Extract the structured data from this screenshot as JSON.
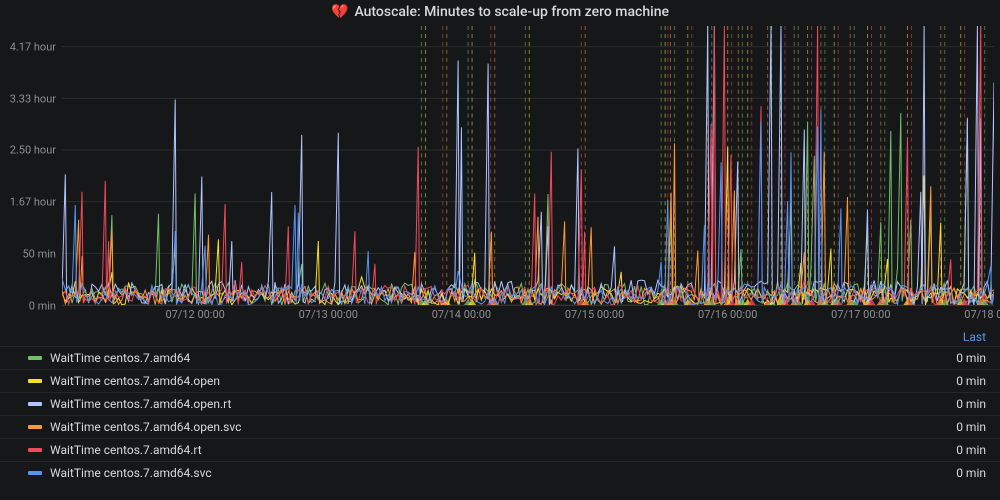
{
  "title": {
    "icon": "💔",
    "text": "Autoscale: Minutes to scale-up from zero machine"
  },
  "chart": {
    "type": "line",
    "background_color": "#161719",
    "grid_color": "#2c2c2c",
    "axis_text_color": "#8e8e8e",
    "y": {
      "min": 0,
      "max": 270,
      "ticks": [
        {
          "v": 0,
          "label": "0 min"
        },
        {
          "v": 50,
          "label": "50 min"
        },
        {
          "v": 100,
          "label": "1.67 hour"
        },
        {
          "v": 150,
          "label": "2.50 hour"
        },
        {
          "v": 200,
          "label": "3.33 hour"
        },
        {
          "v": 250,
          "label": "4.17 hour"
        }
      ]
    },
    "x": {
      "min": 0,
      "max": 7,
      "ticks": [
        {
          "v": 1,
          "label": "07/12 00:00"
        },
        {
          "v": 2,
          "label": "07/13 00:00"
        },
        {
          "v": 3,
          "label": "07/14 00:00"
        },
        {
          "v": 4,
          "label": "07/15 00:00"
        },
        {
          "v": 5,
          "label": "07/16 00:00"
        },
        {
          "v": 6,
          "label": "07/17 00:00"
        },
        {
          "v": 7,
          "label": "07/18 00:00"
        }
      ]
    },
    "annotations": {
      "colors": [
        "#73bf69",
        "#fade2a",
        "#f2495c",
        "#ff9830"
      ],
      "positions": [
        2.7,
        2.73,
        2.86,
        2.89,
        3.05,
        3.08,
        3.22,
        3.25,
        3.48,
        3.51,
        3.9,
        3.93,
        4.5,
        4.53,
        4.55,
        4.57,
        4.6,
        4.7,
        4.73,
        4.85,
        4.88,
        5.0,
        5.03,
        5.08,
        5.11,
        5.15,
        5.18,
        5.3,
        5.33,
        5.4,
        5.43,
        5.5,
        5.53,
        5.6,
        5.63,
        5.7,
        5.73,
        5.8,
        5.83,
        5.92,
        5.95,
        6.05,
        6.08,
        6.15,
        6.18,
        6.35,
        6.38,
        6.6,
        6.63,
        6.75,
        6.78,
        6.9,
        6.93
      ]
    },
    "series": [
      {
        "name": "WaitTime centos.7.amd64",
        "color": "#73bf69",
        "seed": 11,
        "base": 18,
        "spike_prob": 0.06,
        "spike_max": 110
      },
      {
        "name": "WaitTime centos.7.amd64.open",
        "color": "#fade2a",
        "seed": 22,
        "base": 15,
        "spike_prob": 0.05,
        "spike_max": 90
      },
      {
        "name": "WaitTime centos.7.amd64.open.rt",
        "color": "#b0c4ff",
        "seed": 33,
        "base": 20,
        "spike_prob": 0.07,
        "spike_max": 250
      },
      {
        "name": "WaitTime centos.7.amd64.open.svc",
        "color": "#ff9830",
        "seed": 44,
        "base": 14,
        "spike_prob": 0.05,
        "spike_max": 80
      },
      {
        "name": "WaitTime centos.7.amd64.rt",
        "color": "#f2495c",
        "seed": 55,
        "base": 16,
        "spike_prob": 0.06,
        "spike_max": 160
      },
      {
        "name": "WaitTime centos.7.amd64.svc",
        "color": "#5794f2",
        "seed": 66,
        "base": 17,
        "spike_prob": 0.05,
        "spike_max": 100
      }
    ]
  },
  "legend": {
    "header": "Last",
    "rows": [
      {
        "label": "WaitTime centos.7.amd64",
        "color": "#73bf69",
        "value": "0 min"
      },
      {
        "label": "WaitTime centos.7.amd64.open",
        "color": "#fade2a",
        "value": "0 min"
      },
      {
        "label": "WaitTime centos.7.amd64.open.rt",
        "color": "#b0c4ff",
        "value": "0 min"
      },
      {
        "label": "WaitTime centos.7.amd64.open.svc",
        "color": "#ff9830",
        "value": "0 min"
      },
      {
        "label": "WaitTime centos.7.amd64.rt",
        "color": "#f2495c",
        "value": "0 min"
      },
      {
        "label": "WaitTime centos.7.amd64.svc",
        "color": "#5794f2",
        "value": "0 min"
      }
    ]
  }
}
